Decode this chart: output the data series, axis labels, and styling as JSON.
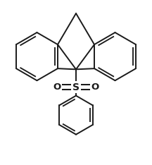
{
  "background_color": "#ffffff",
  "line_color": "#1a1a1a",
  "line_width": 1.4,
  "figsize": [
    2.16,
    2.34
  ],
  "dpi": 100,
  "S_label": "S",
  "O_label": "O",
  "font_size_S": 10,
  "font_size_O": 9.5,
  "xlim": [
    -1.15,
    1.15
  ],
  "ylim": [
    -1.3,
    1.1
  ]
}
